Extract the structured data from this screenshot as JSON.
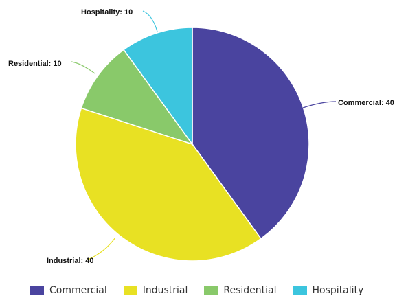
{
  "chart_data": {
    "type": "pie",
    "title": "",
    "categories": [
      "Commercial",
      "Industrial",
      "Residential",
      "Hospitality"
    ],
    "values": [
      40,
      40,
      10,
      10
    ],
    "slice_labels": [
      "Commercial: 40",
      "Industrial: 40",
      "Residential: 10",
      "Hospitality: 10"
    ],
    "colors": [
      "#4a449f",
      "#e8e123",
      "#89c96a",
      "#3cc5de"
    ],
    "start_angle": "12 o'clock",
    "direction": "clockwise",
    "legend": {
      "placement": "bottom",
      "items": [
        {
          "label": "Commercial",
          "color": "#4a449f"
        },
        {
          "label": "Industrial",
          "color": "#e8e123"
        },
        {
          "label": "Residential",
          "color": "#89c96a"
        },
        {
          "label": "Hospitality",
          "color": "#3cc5de"
        }
      ]
    }
  }
}
